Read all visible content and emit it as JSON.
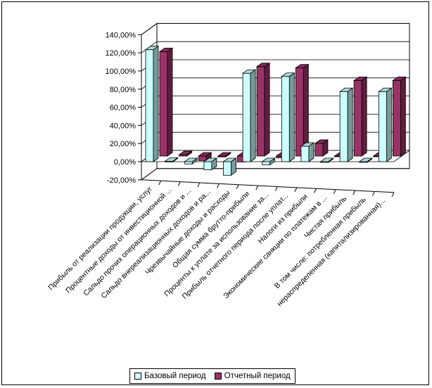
{
  "chart_data": {
    "type": "bar",
    "style": "3d-clustered-column",
    "categories": [
      "Прибыль от реализации продукции, услуг",
      "Процентные доходы от инвестиционной ...",
      "Сальдо прочих операционных доходов и ...",
      "Сальдо внереализационных доходов и ра...",
      "Чрезвычайные доходы и расходы",
      "Общая сумма брутто-прибыли",
      "Проценты к уплате за использование за...",
      "Прибыль отчетного периода после уплат...",
      "Налоги из прибыли",
      "Экономические санкции по платежам в ...",
      "Чистая прибыль",
      "В том числе: потребленная прибыль",
      "нераспределенная (капитализированная)..."
    ],
    "series": [
      {
        "name": "Базовый период",
        "color": "#ccffff",
        "values": [
          123.5,
          0.5,
          -2.5,
          -9.0,
          -15.0,
          97.5,
          -3.5,
          94.0,
          17.0,
          0.0,
          77.3,
          0.0,
          77.3
        ]
      },
      {
        "name": "Отчетный период",
        "color": "#993366",
        "values": [
          115.2,
          1.5,
          -5.0,
          -1.0,
          -6.5,
          98.6,
          -2.0,
          97.2,
          14.0,
          0.0,
          83.3,
          0.0,
          83.3
        ]
      }
    ],
    "ylim": [
      -20,
      140
    ],
    "yticks": [
      "-20,00%",
      "0,00%",
      "20,00%",
      "40,00%",
      "60,00%",
      "80,00%",
      "100,00%",
      "120,00%",
      "140,00%"
    ],
    "grid": true,
    "legend_position": "bottom"
  }
}
